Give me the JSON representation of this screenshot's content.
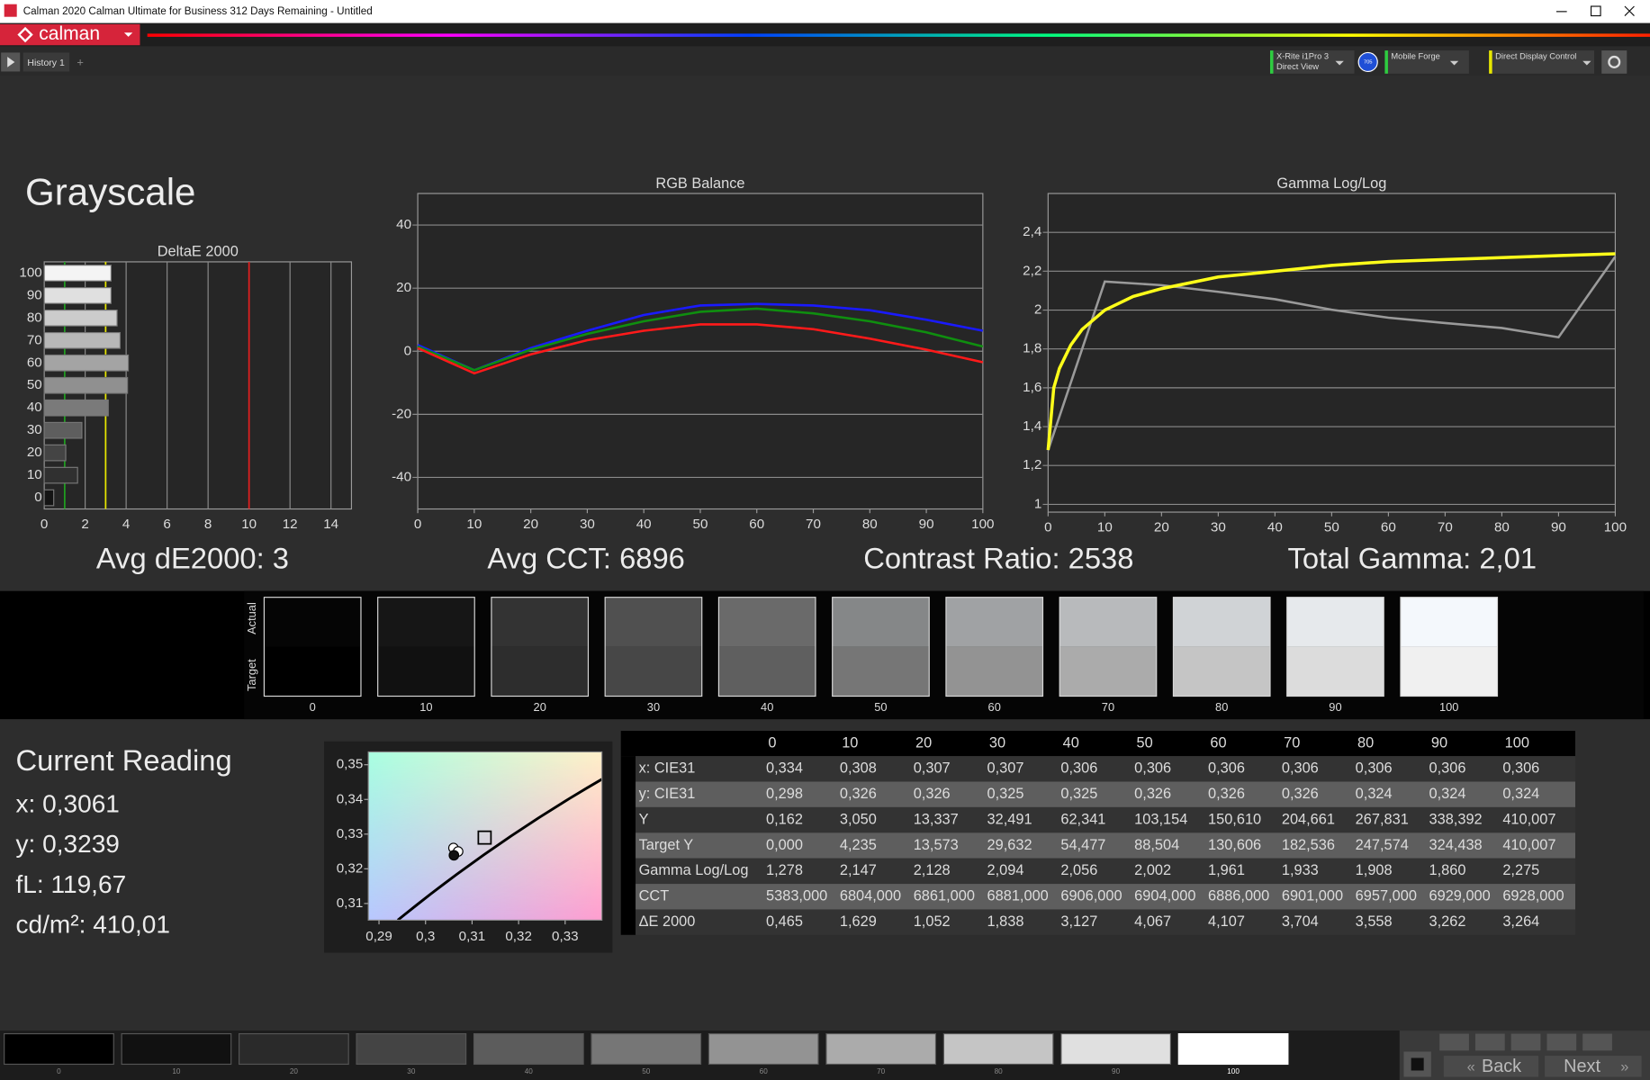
{
  "window": {
    "title": "Calman 2020 Calman Ultimate for Business 312 Days Remaining - Untitled"
  },
  "toolbar": {
    "logo": "calman",
    "tab": "History 1",
    "devices": [
      {
        "lines": [
          "X-Rite i1Pro 3",
          "Direct View"
        ],
        "color": "#2ecc40"
      },
      {
        "lines": [
          "Mobile Forge"
        ],
        "color": "#2ecc40"
      },
      {
        "lines": [
          "Direct Display Control"
        ],
        "color": "#e8e800"
      }
    ],
    "badge": "705"
  },
  "heading": "Grayscale",
  "chart_data": [
    {
      "type": "bar",
      "orientation": "horizontal",
      "title": "DeltaE 2000",
      "categories": [
        "100",
        "90",
        "80",
        "70",
        "60",
        "50",
        "40",
        "30",
        "20",
        "10",
        "0"
      ],
      "values": [
        3.264,
        3.262,
        3.558,
        3.704,
        4.107,
        4.067,
        3.127,
        1.838,
        1.052,
        1.629,
        0.465
      ],
      "colors": [
        "#f4f4f4",
        "#e0e0e0",
        "#cccccc",
        "#b8b8b8",
        "#a4a4a4",
        "#909090",
        "#7a7a7a",
        "#5e5e5e",
        "#444444",
        "#303030",
        "#141414"
      ],
      "xlim": [
        0,
        15
      ],
      "xticks": [
        0,
        2,
        4,
        6,
        8,
        10,
        12,
        14
      ],
      "grid": true,
      "reference_lines": [
        {
          "value": 1,
          "color": "#1f9e1f"
        },
        {
          "value": 3,
          "color": "#e6e600"
        },
        {
          "value": 10,
          "color": "#e02020"
        }
      ]
    },
    {
      "type": "line",
      "title": "RGB Balance",
      "x": [
        0,
        10,
        20,
        30,
        40,
        50,
        60,
        70,
        80,
        90,
        100
      ],
      "series": [
        {
          "color": "#1a1aff",
          "values": [
            2,
            -6,
            1,
            6.5,
            11.5,
            14.5,
            15,
            14.5,
            13,
            10,
            6.5
          ]
        },
        {
          "color": "#0f8f0f",
          "values": [
            1.5,
            -6,
            0.5,
            5.5,
            9.5,
            12.5,
            13.5,
            12,
            9.5,
            6,
            1.5
          ]
        },
        {
          "color": "#ff1a1a",
          "values": [
            1,
            -7,
            -1,
            3.5,
            6.5,
            8.5,
            8.5,
            7,
            4,
            0.5,
            -3.5
          ]
        }
      ],
      "xlim": [
        0,
        100
      ],
      "xticks": [
        0,
        10,
        20,
        30,
        40,
        50,
        60,
        70,
        80,
        90,
        100
      ],
      "ylim": [
        -50,
        50
      ],
      "yticks": [
        -40,
        -20,
        0,
        20,
        40
      ],
      "grid": true
    },
    {
      "type": "line",
      "title": "Gamma Log/Log",
      "series": [
        {
          "color": "#9a9a9a",
          "x": [
            0,
            10,
            20,
            30,
            40,
            50,
            60,
            70,
            80,
            90,
            100
          ],
          "values": [
            1.278,
            2.147,
            2.128,
            2.094,
            2.056,
            2.002,
            1.961,
            1.933,
            1.908,
            1.86,
            2.275
          ]
        },
        {
          "color": "#ffff1a",
          "x": [
            0,
            1,
            2,
            4,
            6,
            8,
            10,
            15,
            20,
            30,
            40,
            50,
            60,
            70,
            80,
            90,
            100
          ],
          "values": [
            1.28,
            1.6,
            1.7,
            1.82,
            1.9,
            1.95,
            2.0,
            2.07,
            2.11,
            2.17,
            2.2,
            2.23,
            2.25,
            2.26,
            2.27,
            2.28,
            2.29
          ]
        }
      ],
      "xlim": [
        0,
        100
      ],
      "xticks": [
        0,
        10,
        20,
        30,
        40,
        50,
        60,
        70,
        80,
        90,
        100
      ],
      "ylim": [
        0.96,
        2.6
      ],
      "yticks": [
        1,
        {
          "value": 1.2,
          "label": "1,2"
        },
        {
          "value": 1.4,
          "label": "1,4"
        },
        {
          "value": 1.6,
          "label": "1,6"
        },
        {
          "value": 1.8,
          "label": "1,8"
        },
        2,
        {
          "value": 2.2,
          "label": "2,2"
        },
        {
          "value": 2.4,
          "label": "2,4"
        }
      ],
      "grid": true
    },
    {
      "type": "scatter",
      "series": [
        {
          "color": "#ffffff",
          "x": [
            0.306,
            0.307,
            0.3061
          ],
          "values": [
            0.326,
            0.325,
            0.3239
          ]
        }
      ],
      "target": {
        "x": 0.3127,
        "y": 0.329
      },
      "xlim": [
        0.2877,
        0.3379
      ],
      "xticks": [
        {
          "value": 0.29,
          "label": "0,29"
        },
        {
          "value": 0.3,
          "label": "0,3"
        },
        {
          "value": 0.31,
          "label": "0,31"
        },
        {
          "value": 0.32,
          "label": "0,32"
        },
        {
          "value": 0.33,
          "label": "0,33"
        }
      ],
      "ylim": [
        0.3052,
        0.3537
      ],
      "yticks": [
        {
          "value": 0.31,
          "label": "0,31"
        },
        {
          "value": 0.32,
          "label": "0,32"
        },
        {
          "value": 0.33,
          "label": "0,33"
        },
        {
          "value": 0.34,
          "label": "0,34"
        },
        {
          "value": 0.35,
          "label": "0,35"
        }
      ]
    }
  ],
  "metrics": [
    "Avg dE2000: 3",
    "Avg CCT: 6896",
    "Contrast Ratio: 2538",
    "Total Gamma: 2,01"
  ],
  "swatches": {
    "actual_label": "Actual",
    "target_label": "Target",
    "patches": [
      {
        "label": "0",
        "actual": "#050505",
        "target": "#000000"
      },
      {
        "label": "10",
        "actual": "#161616",
        "target": "#111111"
      },
      {
        "label": "20",
        "actual": "#333333",
        "target": "#2d2d2d"
      },
      {
        "label": "30",
        "actual": "#505050",
        "target": "#474747"
      },
      {
        "label": "40",
        "actual": "#6a6a6a",
        "target": "#5f5f5f"
      },
      {
        "label": "50",
        "actual": "#858788",
        "target": "#767676"
      },
      {
        "label": "60",
        "actual": "#a0a2a4",
        "target": "#939393"
      },
      {
        "label": "70",
        "actual": "#b8babc",
        "target": "#ababab"
      },
      {
        "label": "80",
        "actual": "#d0d3d6",
        "target": "#c5c5c5"
      },
      {
        "label": "90",
        "actual": "#e6e9ec",
        "target": "#dcdcdc"
      },
      {
        "label": "100",
        "actual": "#f4f8fc",
        "target": "#f0f0f0"
      }
    ]
  },
  "current_reading": {
    "title": "Current Reading",
    "lines": [
      "x: 0,3061",
      "y: 0,3239",
      "fL: 119,67",
      "cd/m²: 410,01"
    ]
  },
  "table": {
    "columns": [
      "0",
      "10",
      "20",
      "30",
      "40",
      "50",
      "60",
      "70",
      "80",
      "90",
      "100"
    ],
    "rows": [
      {
        "label": "x: CIE31",
        "cells": [
          "0,334",
          "0,308",
          "0,307",
          "0,307",
          "0,306",
          "0,306",
          "0,306",
          "0,306",
          "0,306",
          "0,306",
          "0,306"
        ]
      },
      {
        "label": "y: CIE31",
        "cells": [
          "0,298",
          "0,326",
          "0,326",
          "0,325",
          "0,325",
          "0,326",
          "0,326",
          "0,326",
          "0,324",
          "0,324",
          "0,324"
        ]
      },
      {
        "label": "Y",
        "cells": [
          "0,162",
          "3,050",
          "13,337",
          "32,491",
          "62,341",
          "103,154",
          "150,610",
          "204,661",
          "267,831",
          "338,392",
          "410,007"
        ]
      },
      {
        "label": "Target Y",
        "cells": [
          "0,000",
          "4,235",
          "13,573",
          "29,632",
          "54,477",
          "88,504",
          "130,606",
          "182,536",
          "247,574",
          "324,438",
          "410,007"
        ]
      },
      {
        "label": "Gamma Log/Log",
        "cells": [
          "1,278",
          "2,147",
          "2,128",
          "2,094",
          "2,056",
          "2,002",
          "1,961",
          "1,933",
          "1,908",
          "1,860",
          "2,275"
        ]
      },
      {
        "label": "CCT",
        "cells": [
          "5383,000",
          "6804,000",
          "6861,000",
          "6881,000",
          "6906,000",
          "6904,000",
          "6886,000",
          "6901,000",
          "6957,000",
          "6929,000",
          "6928,000"
        ]
      },
      {
        "label": "ΔE 2000",
        "cells": [
          "0,465",
          "1,629",
          "1,052",
          "1,838",
          "3,127",
          "4,067",
          "4,107",
          "3,704",
          "3,558",
          "3,262",
          "3,264"
        ]
      }
    ]
  },
  "bottom_strip": {
    "patches": [
      {
        "label": "0",
        "color": "#000000"
      },
      {
        "label": "10",
        "color": "#111111"
      },
      {
        "label": "20",
        "color": "#2a2a2a"
      },
      {
        "label": "30",
        "color": "#444444"
      },
      {
        "label": "40",
        "color": "#5c5c5c"
      },
      {
        "label": "50",
        "color": "#767676"
      },
      {
        "label": "60",
        "color": "#939393"
      },
      {
        "label": "70",
        "color": "#ababab"
      },
      {
        "label": "80",
        "color": "#c5c5c5"
      },
      {
        "label": "90",
        "color": "#e0e0e0"
      },
      {
        "label": "100",
        "color": "#ffffff"
      }
    ]
  },
  "nav": {
    "back": "Back",
    "next": "Next"
  }
}
